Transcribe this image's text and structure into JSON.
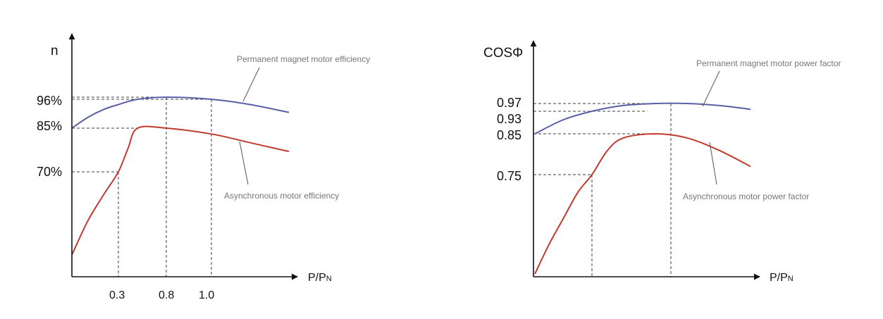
{
  "chart_data": [
    {
      "type": "line",
      "ylabel": "n",
      "xlabel": {
        "main": "P/P",
        "sub": "N"
      },
      "x_ticks": [
        "0.3",
        "0.8",
        "1.0"
      ],
      "y_ticks": [
        "96%",
        "85%",
        "70%"
      ],
      "series": [
        {
          "name": "Permanent magnet motor efficiency",
          "color": "#5a5ea6",
          "points": [
            [
              0.0,
              0.85
            ],
            [
              0.1,
              0.89
            ],
            [
              0.2,
              0.92
            ],
            [
              0.3,
              0.94
            ],
            [
              0.5,
              0.96
            ],
            [
              0.8,
              0.97
            ],
            [
              1.0,
              0.96
            ],
            [
              1.2,
              0.94
            ],
            [
              1.4,
              0.91
            ]
          ]
        },
        {
          "name": "Asynchronous motor efficiency",
          "color": "#c03a2e",
          "points": [
            [
              0.0,
              0.25
            ],
            [
              0.1,
              0.43
            ],
            [
              0.2,
              0.57
            ],
            [
              0.3,
              0.7
            ],
            [
              0.4,
              0.78
            ],
            [
              0.5,
              0.85
            ],
            [
              0.8,
              0.85
            ],
            [
              1.0,
              0.83
            ],
            [
              1.2,
              0.8
            ],
            [
              1.4,
              0.77
            ]
          ]
        }
      ],
      "guides": [
        {
          "x": 0.3,
          "y": 0.7
        },
        {
          "x": 0.8,
          "y": 0.97
        },
        {
          "x": 1.0,
          "y": 0.96
        },
        {
          "y": 0.85
        }
      ],
      "annotations": [
        {
          "text": "Permanent magnet motor efficiency",
          "series": 0
        },
        {
          "text": "Asynchronous motor efficiency",
          "series": 1
        }
      ]
    },
    {
      "type": "line",
      "ylabel": "COSΦ",
      "xlabel": {
        "main": "P/P",
        "sub": "N"
      },
      "x_ticks": [],
      "y_ticks": [
        "0.97",
        "0.93",
        "0.85",
        "0.75"
      ],
      "series": [
        {
          "name": "Permanent magnet motor power factor",
          "color": "#5a5ea6",
          "points": [
            [
              0.0,
              0.85
            ],
            [
              0.2,
              0.9
            ],
            [
              0.4,
              0.93
            ],
            [
              0.6,
              0.96
            ],
            [
              0.8,
              0.97
            ],
            [
              1.0,
              0.97
            ],
            [
              1.2,
              0.96
            ],
            [
              1.4,
              0.94
            ]
          ]
        },
        {
          "name": "Asynchronous motor power factor",
          "color": "#c03a2e",
          "points": [
            [
              0.0,
              0.25
            ],
            [
              0.1,
              0.4
            ],
            [
              0.2,
              0.53
            ],
            [
              0.3,
              0.66
            ],
            [
              0.4,
              0.75
            ],
            [
              0.5,
              0.81
            ],
            [
              0.6,
              0.84
            ],
            [
              0.8,
              0.85
            ],
            [
              1.0,
              0.84
            ],
            [
              1.2,
              0.81
            ],
            [
              1.4,
              0.77
            ]
          ]
        }
      ],
      "guides": [
        {
          "x": 0.4,
          "y": 0.75
        },
        {
          "x": 0.9,
          "y": 0.97
        },
        {
          "y": 0.93
        },
        {
          "y": 0.85
        }
      ],
      "annotations": [
        {
          "text": "Permanent magnet motor power factor",
          "series": 0
        },
        {
          "text": "Asynchronous motor power factor",
          "series": 1
        }
      ]
    }
  ]
}
